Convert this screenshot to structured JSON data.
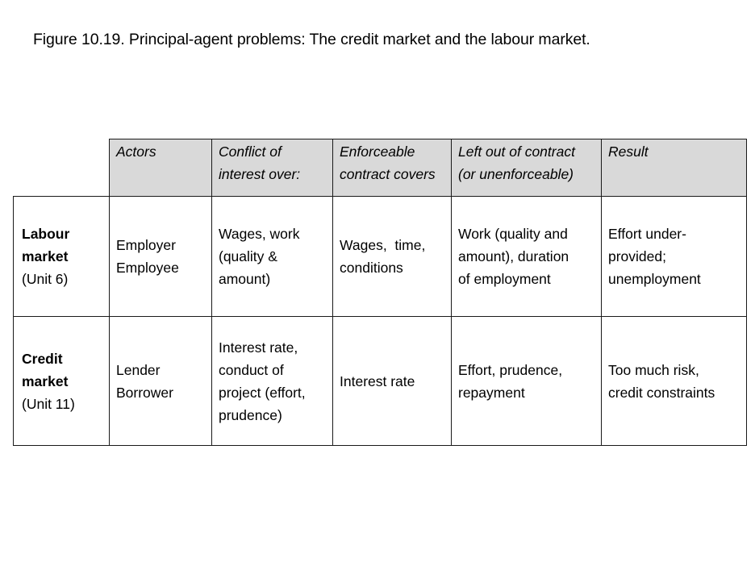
{
  "figure": {
    "title": "Figure 10.19. Principal-agent problems: The credit market and the labour market."
  },
  "table": {
    "headers": [
      [
        "Actors"
      ],
      [
        "Conflict of",
        "interest over:"
      ],
      [
        "Enforceable",
        "contract covers"
      ],
      [
        "Left out of contract",
        "(or unenforceable)"
      ],
      [
        "Result"
      ]
    ],
    "rows": [
      {
        "name": [
          "Labour",
          "market"
        ],
        "unit": "(Unit 6)",
        "cells": [
          [
            "Employer",
            "Employee"
          ],
          [
            "Wages, work",
            "(quality &",
            "amount)"
          ],
          [
            "Wages,  time,",
            "conditions"
          ],
          [
            "Work (quality and",
            "amount), duration",
            "of employment"
          ],
          [
            "Effort under-",
            "provided;",
            "unemployment"
          ]
        ]
      },
      {
        "name": [
          "Credit",
          "market"
        ],
        "unit": "(Unit 11)",
        "cells": [
          [
            "Lender",
            "Borrower"
          ],
          [
            "Interest rate,",
            "conduct of",
            "project (effort,",
            "prudence)"
          ],
          [
            "Interest rate"
          ],
          [
            "Effort, prudence,",
            "repayment"
          ],
          [
            "Too much risk,",
            "credit constraints"
          ]
        ]
      }
    ]
  }
}
